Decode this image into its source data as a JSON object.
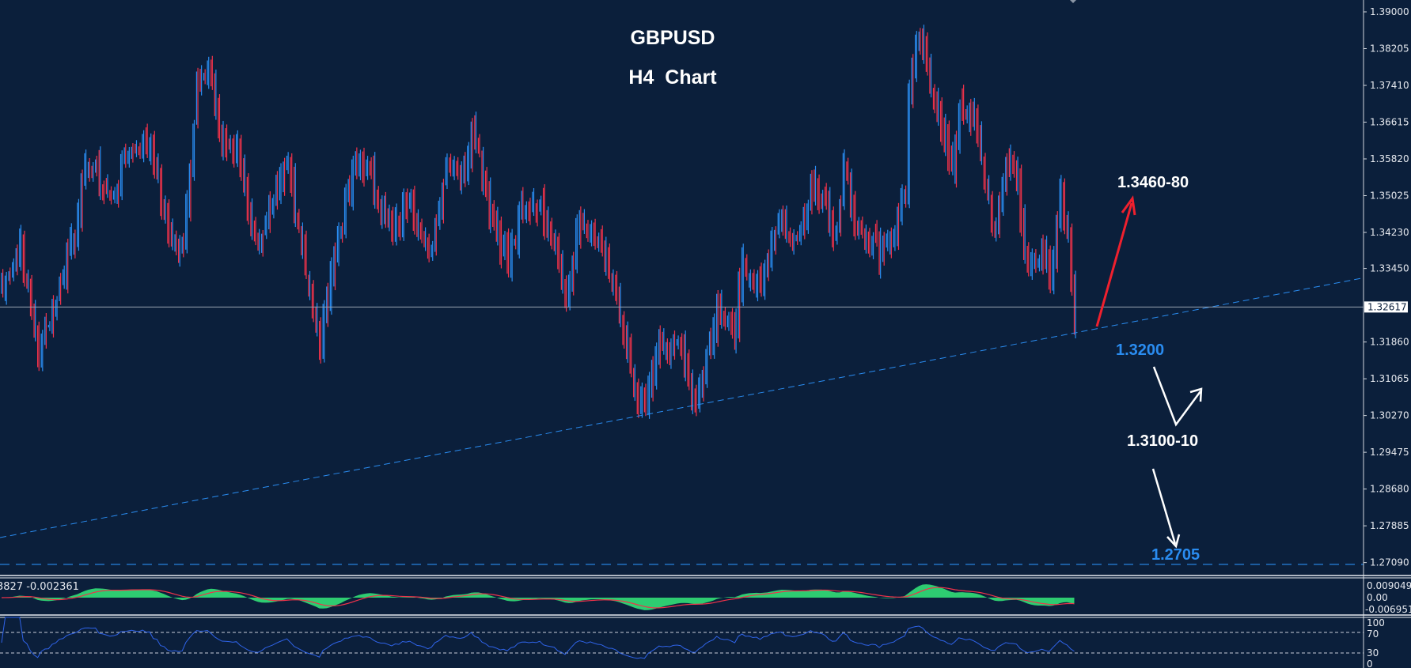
{
  "chart_data": {
    "type": "candlestick",
    "title": "GBPUSD",
    "subtitle": "H4  Chart",
    "xlabel": "",
    "ylabel": "",
    "ylim": [
      1.27,
      1.391
    ],
    "y_ticks": [
      "1.39000",
      "1.38205",
      "1.37410",
      "1.36615",
      "1.35820",
      "1.35025",
      "1.34230",
      "1.33450",
      "1.31860",
      "1.31065",
      "1.30270",
      "1.29475",
      "1.28680",
      "1.27885",
      "1.27090"
    ],
    "current_price": "1.32617",
    "x_unit": "bar",
    "close_path": {
      "bar": [
        0,
        5,
        10,
        15,
        20,
        24,
        30,
        35,
        41,
        46,
        50,
        54,
        57,
        60,
        65,
        70,
        75,
        79,
        84,
        88,
        90,
        95,
        99,
        103,
        108,
        113,
        118,
        123,
        128,
        130,
        135,
        140,
        144,
        148,
        153,
        156,
        160,
        165,
        170,
        175,
        178,
        181,
        188,
        191,
        195,
        198,
        203,
        205,
        210,
        215,
        220,
        224,
        228,
        231,
        233,
        236,
        243,
        248,
        250,
        251,
        254,
        256,
        259,
        263,
        265,
        269,
        273,
        275,
        278,
        281,
        284,
        288,
        290,
        293,
        295,
        297
      ],
      "close": [
        1.3306,
        1.3397,
        1.316,
        1.3288,
        1.3434,
        1.358,
        1.3489,
        1.3598,
        1.3617,
        1.3416,
        1.3379,
        1.3763,
        1.3781,
        1.3635,
        1.3598,
        1.3397,
        1.347,
        1.358,
        1.3342,
        1.316,
        1.3306,
        1.3489,
        1.3589,
        1.3525,
        1.3416,
        1.3507,
        1.3361,
        1.358,
        1.3544,
        1.3671,
        1.347,
        1.3361,
        1.347,
        1.3489,
        1.3416,
        1.3269,
        1.3452,
        1.3397,
        1.3288,
        1.3068,
        1.3032,
        1.316,
        1.3178,
        1.3059,
        1.3141,
        1.3269,
        1.3214,
        1.3361,
        1.3306,
        1.3452,
        1.3397,
        1.3525,
        1.3489,
        1.3416,
        1.3562,
        1.3452,
        1.3379,
        1.3452,
        1.3525,
        1.3708,
        1.3854,
        1.3763,
        1.369,
        1.3544,
        1.3708,
        1.3653,
        1.3489,
        1.3434,
        1.358,
        1.3544,
        1.3324,
        1.3379,
        1.3342,
        1.3489,
        1.3397,
        1.3233
      ]
    },
    "trendline": {
      "from": {
        "bar": 0,
        "price": 1.2763
      },
      "to": {
        "bar": 378,
        "price": 1.3326
      },
      "style": "dashed"
    },
    "support_line": {
      "price": 1.2705,
      "style": "dashed"
    },
    "annotations": [
      {
        "text": "1.3460-80",
        "color": "#ffffff"
      },
      {
        "text": "1.3200",
        "color": "#2a8cf0"
      },
      {
        "text": "1.3100-10",
        "color": "#ffffff"
      },
      {
        "text": "1.2705",
        "color": "#2a8cf0"
      }
    ],
    "colors": {
      "background": "#0b1f3b",
      "bull": "#2a8cf0",
      "bear": "#f0324a",
      "trendline": "#2a8cf0",
      "arrow_up": "#f0202e",
      "arrow_scenario": "#ffffff"
    },
    "indicators": {
      "macd": {
        "label": "3827 -0.002361",
        "ticks": [
          "0.009049",
          "0.00",
          "-0.006951"
        ],
        "hist_color": "#2ecc71",
        "signal_color": "#f0324a"
      },
      "rsi": {
        "ticks": [
          "100",
          "70",
          "30",
          "0"
        ],
        "levels": [
          70,
          30
        ],
        "line_color": "#2f63e8"
      }
    }
  }
}
